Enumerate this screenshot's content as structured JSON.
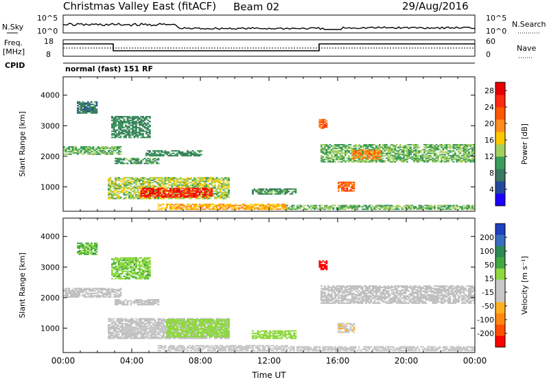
{
  "header": {
    "station": "Christmas Valley East (fitACF)",
    "beam": "Beam 02",
    "date": "29/Aug/2016"
  },
  "top_panels": {
    "nsky_label": "N.Sky",
    "nsearch_label": "N.Search",
    "noise_ticks": [
      "10^5",
      "10^0"
    ],
    "freq_label": "Freq.",
    "freq_unit": "[MHz]",
    "freq_ticks": [
      "18",
      "8"
    ],
    "nave_label": "Nave",
    "nave_ticks": [
      "60",
      "0"
    ],
    "cpid_label": "CPID",
    "cpid_text": "normal (fast) 151 RF"
  },
  "colors": {
    "power_scale": [
      "#1c00ff",
      "#24489c",
      "#3c7860",
      "#3c9c5c",
      "#a4d060",
      "#fcc800",
      "#ff8c1c",
      "#ff5800",
      "#ff2810",
      "#e80000"
    ],
    "velocity_scale": [
      "#2040c0",
      "#3a6cc0",
      "#2d8a55",
      "#43a743",
      "#8ed840",
      "#c8c8c8",
      "#c8c8c8",
      "#ffb020",
      "#ff8810",
      "#ff5000",
      "#ff0000"
    ],
    "ground_scatter": "#c0c0c0"
  },
  "chart_data": [
    {
      "type": "heatmap",
      "panel": "power",
      "xlabel": "Time UT",
      "ylabel": "Slant Range [km]",
      "xlim": [
        0,
        24
      ],
      "ylim": [
        200,
        4600
      ],
      "yticks": [
        1000,
        2000,
        3000,
        4000
      ],
      "colorbar": {
        "label": "Power [dB]",
        "range": [
          0,
          30
        ],
        "ticks": [
          4,
          8,
          12,
          16,
          20,
          24,
          28
        ]
      },
      "regions": [
        {
          "t0": 0.0,
          "t1": 3.4,
          "r0": 2050,
          "r1": 2300,
          "value": 12
        },
        {
          "t0": 3.0,
          "t1": 5.5,
          "r0": 1750,
          "r1": 1950,
          "value": 10
        },
        {
          "t0": 4.8,
          "t1": 8.0,
          "r0": 2000,
          "r1": 2200,
          "value": 9
        },
        {
          "t0": 2.6,
          "t1": 9.6,
          "r0": 600,
          "r1": 1300,
          "value": 14
        },
        {
          "t0": 4.5,
          "t1": 8.6,
          "r0": 650,
          "r1": 950,
          "value": 26
        },
        {
          "t0": 5.5,
          "t1": 13.0,
          "r0": 250,
          "r1": 420,
          "value": 18
        },
        {
          "t0": 15.0,
          "t1": 24.0,
          "r0": 1800,
          "r1": 2400,
          "value": 12
        },
        {
          "t0": 16.8,
          "t1": 18.5,
          "r0": 1900,
          "r1": 2200,
          "value": 20
        },
        {
          "t0": 16.0,
          "t1": 17.0,
          "r0": 850,
          "r1": 1150,
          "value": 22
        },
        {
          "t0": 14.9,
          "t1": 15.3,
          "r0": 2900,
          "r1": 3200,
          "value": 22
        },
        {
          "t0": 11.0,
          "t1": 13.5,
          "r0": 750,
          "r1": 950,
          "value": 10
        },
        {
          "t0": 13.0,
          "t1": 24.0,
          "r0": 250,
          "r1": 400,
          "value": 12
        },
        {
          "t0": 2.8,
          "t1": 5.0,
          "r0": 2600,
          "r1": 3300,
          "value": 9
        },
        {
          "t0": 0.8,
          "t1": 2.0,
          "r0": 3400,
          "r1": 3800,
          "value": 8
        }
      ]
    },
    {
      "type": "heatmap",
      "panel": "velocity",
      "xlabel": "Time UT",
      "ylabel": "Slant Range [km]",
      "xlim": [
        0,
        24
      ],
      "ylim": [
        200,
        4600
      ],
      "yticks": [
        1000,
        2000,
        3000,
        4000
      ],
      "xticks": [
        "00:00",
        "04:00",
        "08:00",
        "12:00",
        "16:00",
        "20:00",
        "00:00"
      ],
      "colorbar": {
        "label": "Velocity [m s⁻¹]",
        "range": [
          -250,
          250
        ],
        "ticks": [
          200,
          100,
          50,
          15,
          -15,
          -50,
          -100,
          -200
        ]
      },
      "regions": [
        {
          "t0": 0.0,
          "t1": 3.4,
          "r0": 2000,
          "r1": 2300,
          "value": 0,
          "ground_scatter": true
        },
        {
          "t0": 3.0,
          "t1": 5.5,
          "r0": 1750,
          "r1": 1950,
          "value": 0,
          "ground_scatter": true
        },
        {
          "t0": 2.6,
          "t1": 9.6,
          "r0": 650,
          "r1": 1300,
          "value": 0,
          "ground_scatter": true
        },
        {
          "t0": 6.0,
          "t1": 9.6,
          "r0": 700,
          "r1": 1300,
          "value": 40
        },
        {
          "t0": 3.5,
          "t1": 6.0,
          "r0": 850,
          "r1": 1050,
          "value": -40
        },
        {
          "t0": 5.5,
          "t1": 13.0,
          "r0": 250,
          "r1": 420,
          "value": -40
        },
        {
          "t0": 15.0,
          "t1": 24.0,
          "r0": 1800,
          "r1": 2400,
          "value": 0,
          "ground_scatter": true
        },
        {
          "t0": 16.0,
          "t1": 17.0,
          "r0": 850,
          "r1": 1150,
          "value": -60
        },
        {
          "t0": 14.9,
          "t1": 15.3,
          "r0": 2900,
          "r1": 3200,
          "value": -240
        },
        {
          "t0": 11.0,
          "t1": 13.5,
          "r0": 650,
          "r1": 900,
          "value": 40
        },
        {
          "t0": 13.0,
          "t1": 24.0,
          "r0": 250,
          "r1": 400,
          "value": -40
        },
        {
          "t0": 2.8,
          "t1": 5.0,
          "r0": 2600,
          "r1": 3300,
          "value": 60
        },
        {
          "t0": 0.8,
          "t1": 2.0,
          "r0": 3400,
          "r1": 3800,
          "value": 70
        }
      ]
    }
  ]
}
